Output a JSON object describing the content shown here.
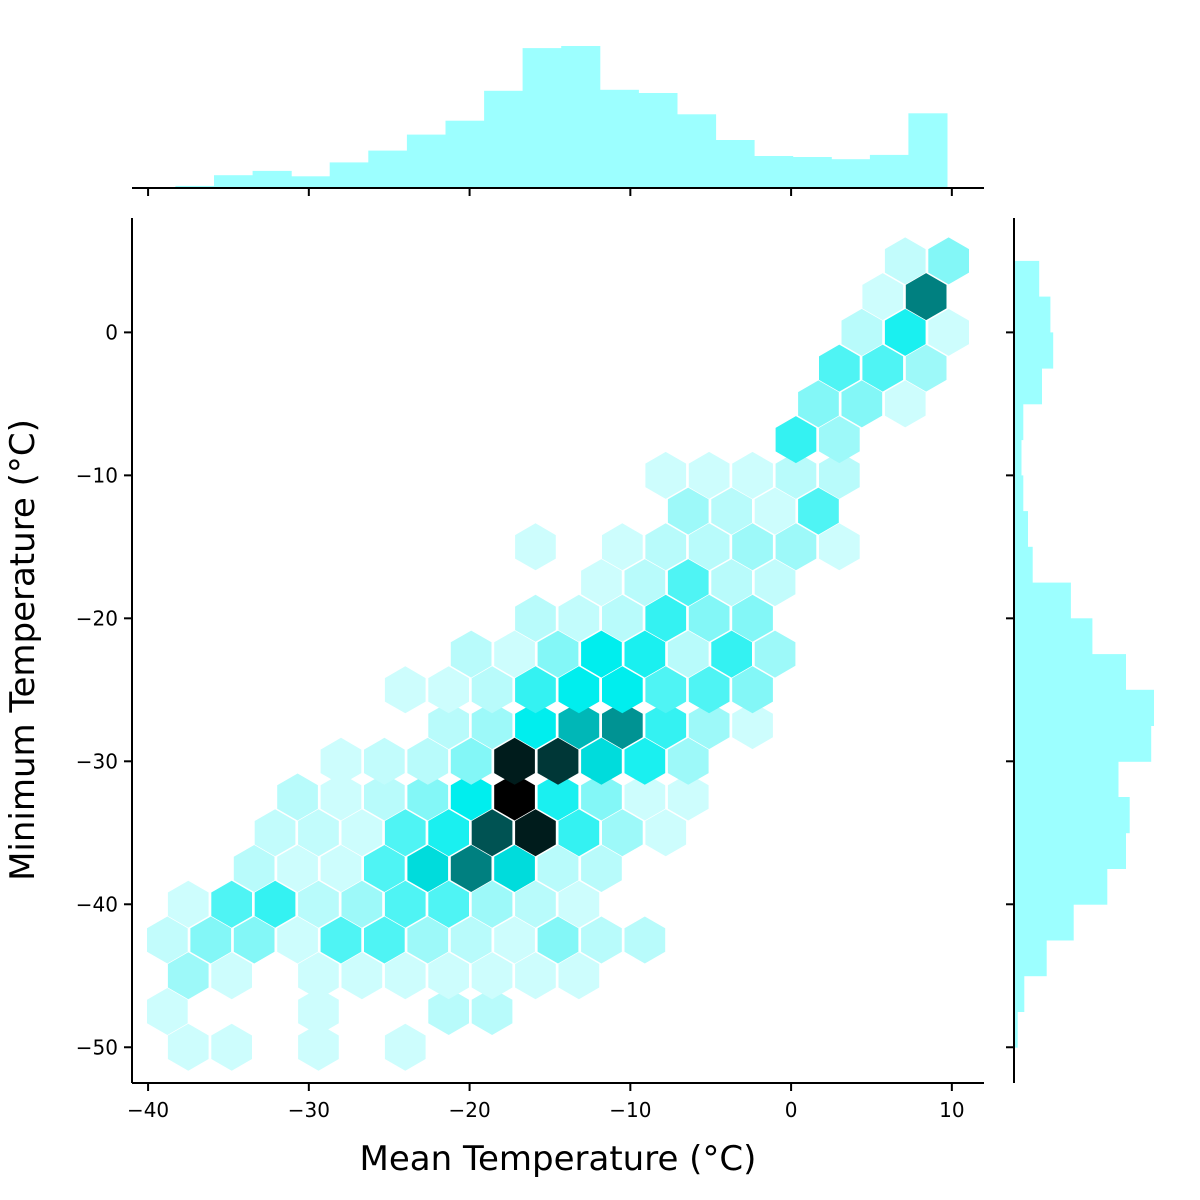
{
  "chart_data": {
    "type": "hexbin-jointplot",
    "xlabel": "Mean Temperature (°C)",
    "ylabel": "Minimum Temperature (°C)",
    "xlim": [
      -41,
      12
    ],
    "ylim": [
      -52.5,
      8
    ],
    "x_ticks": [
      -40,
      -30,
      -20,
      -10,
      0,
      10
    ],
    "y_ticks": [
      -50,
      -40,
      -30,
      -20,
      -10,
      0
    ],
    "x_tick_labels": [
      "−40",
      "−30",
      "−20",
      "−10",
      "0",
      "10"
    ],
    "y_tick_labels": [
      "−50",
      "−40",
      "−30",
      "−20",
      "−10",
      "0"
    ],
    "hex_color": "#00ffff",
    "max_count": 10,
    "hexbins": [
      {
        "x": -37.5,
        "y": -50,
        "count": 0.6
      },
      {
        "x": -34.8,
        "y": -50,
        "count": 0.6
      },
      {
        "x": -29.4,
        "y": -50,
        "count": 0.6
      },
      {
        "x": -24.0,
        "y": -50,
        "count": 0.6
      },
      {
        "x": -38.8,
        "y": -47.5,
        "count": 0.6
      },
      {
        "x": -29.4,
        "y": -47.5,
        "count": 0.6
      },
      {
        "x": -21.3,
        "y": -47.5,
        "count": 1.0
      },
      {
        "x": -18.6,
        "y": -47.5,
        "count": 1.0
      },
      {
        "x": -37.5,
        "y": -45,
        "count": 1.5
      },
      {
        "x": -34.8,
        "y": -45,
        "count": 0.6
      },
      {
        "x": -29.4,
        "y": -45,
        "count": 0.6
      },
      {
        "x": -26.7,
        "y": -45,
        "count": 0.6
      },
      {
        "x": -24.0,
        "y": -45,
        "count": 0.6
      },
      {
        "x": -21.3,
        "y": -45,
        "count": 0.6
      },
      {
        "x": -18.6,
        "y": -45,
        "count": 0.6
      },
      {
        "x": -15.9,
        "y": -45,
        "count": 0.6
      },
      {
        "x": -13.2,
        "y": -45,
        "count": 0.6
      },
      {
        "x": -38.8,
        "y": -42.5,
        "count": 0.8
      },
      {
        "x": -36.1,
        "y": -42.5,
        "count": 2.0
      },
      {
        "x": -33.4,
        "y": -42.5,
        "count": 2.0
      },
      {
        "x": -30.7,
        "y": -42.5,
        "count": 0.6
      },
      {
        "x": -28.0,
        "y": -42.5,
        "count": 3.0
      },
      {
        "x": -25.3,
        "y": -42.5,
        "count": 3.0
      },
      {
        "x": -22.6,
        "y": -42.5,
        "count": 1.5
      },
      {
        "x": -19.9,
        "y": -42.5,
        "count": 1.0
      },
      {
        "x": -17.2,
        "y": -42.5,
        "count": 0.6
      },
      {
        "x": -14.5,
        "y": -42.5,
        "count": 2.0
      },
      {
        "x": -11.8,
        "y": -42.5,
        "count": 1.0
      },
      {
        "x": -9.1,
        "y": -42.5,
        "count": 1.0
      },
      {
        "x": -37.5,
        "y": -40,
        "count": 0.6
      },
      {
        "x": -34.8,
        "y": -40,
        "count": 3.0
      },
      {
        "x": -32.1,
        "y": -40,
        "count": 3.5
      },
      {
        "x": -29.4,
        "y": -40,
        "count": 1.0
      },
      {
        "x": -26.7,
        "y": -40,
        "count": 1.5
      },
      {
        "x": -24.0,
        "y": -40,
        "count": 3.0
      },
      {
        "x": -21.3,
        "y": -40,
        "count": 3.0
      },
      {
        "x": -18.6,
        "y": -40,
        "count": 1.5
      },
      {
        "x": -15.9,
        "y": -40,
        "count": 1.0
      },
      {
        "x": -13.2,
        "y": -40,
        "count": 0.6
      },
      {
        "x": -33.4,
        "y": -37.5,
        "count": 1.0
      },
      {
        "x": -30.7,
        "y": -37.5,
        "count": 0.6
      },
      {
        "x": -28.0,
        "y": -37.5,
        "count": 0.6
      },
      {
        "x": -25.3,
        "y": -37.5,
        "count": 3.0
      },
      {
        "x": -22.6,
        "y": -37.5,
        "count": 5.0
      },
      {
        "x": -19.9,
        "y": -37.5,
        "count": 7.5
      },
      {
        "x": -17.2,
        "y": -37.5,
        "count": 5.0
      },
      {
        "x": -14.5,
        "y": -37.5,
        "count": 1.0
      },
      {
        "x": -11.8,
        "y": -37.5,
        "count": 1.0
      },
      {
        "x": -32.1,
        "y": -35,
        "count": 0.8
      },
      {
        "x": -29.4,
        "y": -35,
        "count": 0.8
      },
      {
        "x": -26.7,
        "y": -35,
        "count": 0.6
      },
      {
        "x": -24.0,
        "y": -35,
        "count": 3.0
      },
      {
        "x": -21.3,
        "y": -35,
        "count": 4.0
      },
      {
        "x": -18.6,
        "y": -35,
        "count": 8.5
      },
      {
        "x": -15.9,
        "y": -35,
        "count": 9.5
      },
      {
        "x": -13.2,
        "y": -35,
        "count": 3.5
      },
      {
        "x": -10.5,
        "y": -35,
        "count": 1.5
      },
      {
        "x": -7.8,
        "y": -35,
        "count": 0.6
      },
      {
        "x": -30.7,
        "y": -32.5,
        "count": 1.0
      },
      {
        "x": -28.0,
        "y": -32.5,
        "count": 0.6
      },
      {
        "x": -25.3,
        "y": -32.5,
        "count": 1.0
      },
      {
        "x": -22.6,
        "y": -32.5,
        "count": 2.0
      },
      {
        "x": -19.9,
        "y": -32.5,
        "count": 4.5
      },
      {
        "x": -17.2,
        "y": -32.5,
        "count": 10.0
      },
      {
        "x": -14.5,
        "y": -32.5,
        "count": 4.0
      },
      {
        "x": -11.8,
        "y": -32.5,
        "count": 2.0
      },
      {
        "x": -9.1,
        "y": -32.5,
        "count": 0.6
      },
      {
        "x": -6.4,
        "y": -32.5,
        "count": 0.6
      },
      {
        "x": -28.0,
        "y": -30,
        "count": 0.6
      },
      {
        "x": -25.3,
        "y": -30,
        "count": 0.8
      },
      {
        "x": -22.6,
        "y": -30,
        "count": 1.0
      },
      {
        "x": -19.9,
        "y": -30,
        "count": 2.0
      },
      {
        "x": -17.2,
        "y": -30,
        "count": 9.5
      },
      {
        "x": -14.5,
        "y": -30,
        "count": 9.0
      },
      {
        "x": -11.8,
        "y": -30,
        "count": 5.0
      },
      {
        "x": -9.1,
        "y": -30,
        "count": 4.0
      },
      {
        "x": -6.4,
        "y": -30,
        "count": 1.5
      },
      {
        "x": -21.3,
        "y": -27.5,
        "count": 1.0
      },
      {
        "x": -18.6,
        "y": -27.5,
        "count": 1.5
      },
      {
        "x": -15.9,
        "y": -27.5,
        "count": 4.5
      },
      {
        "x": -13.2,
        "y": -27.5,
        "count": 6.0
      },
      {
        "x": -10.5,
        "y": -27.5,
        "count": 7.0
      },
      {
        "x": -7.8,
        "y": -27.5,
        "count": 3.5
      },
      {
        "x": -5.1,
        "y": -27.5,
        "count": 1.5
      },
      {
        "x": -2.4,
        "y": -27.5,
        "count": 0.6
      },
      {
        "x": -24.0,
        "y": -25,
        "count": 0.6
      },
      {
        "x": -21.3,
        "y": -25,
        "count": 0.6
      },
      {
        "x": -18.6,
        "y": -25,
        "count": 1.0
      },
      {
        "x": -15.9,
        "y": -25,
        "count": 3.5
      },
      {
        "x": -13.2,
        "y": -25,
        "count": 4.5
      },
      {
        "x": -10.5,
        "y": -25,
        "count": 4.5
      },
      {
        "x": -7.8,
        "y": -25,
        "count": 3.0
      },
      {
        "x": -5.1,
        "y": -25,
        "count": 3.0
      },
      {
        "x": -2.4,
        "y": -25,
        "count": 2.0
      },
      {
        "x": -19.9,
        "y": -22.5,
        "count": 1.0
      },
      {
        "x": -17.2,
        "y": -22.5,
        "count": 0.6
      },
      {
        "x": -14.5,
        "y": -22.5,
        "count": 2.0
      },
      {
        "x": -11.8,
        "y": -22.5,
        "count": 4.5
      },
      {
        "x": -9.1,
        "y": -22.5,
        "count": 4.0
      },
      {
        "x": -6.4,
        "y": -22.5,
        "count": 1.0
      },
      {
        "x": -3.7,
        "y": -22.5,
        "count": 3.5
      },
      {
        "x": -1.0,
        "y": -22.5,
        "count": 1.5
      },
      {
        "x": -15.9,
        "y": -20,
        "count": 1.0
      },
      {
        "x": -13.2,
        "y": -20,
        "count": 0.8
      },
      {
        "x": -10.5,
        "y": -20,
        "count": 1.0
      },
      {
        "x": -7.8,
        "y": -20,
        "count": 3.5
      },
      {
        "x": -5.1,
        "y": -20,
        "count": 2.0
      },
      {
        "x": -2.4,
        "y": -20,
        "count": 2.0
      },
      {
        "x": -11.8,
        "y": -17.5,
        "count": 0.6
      },
      {
        "x": -9.1,
        "y": -17.5,
        "count": 1.0
      },
      {
        "x": -6.4,
        "y": -17.5,
        "count": 3.0
      },
      {
        "x": -3.7,
        "y": -17.5,
        "count": 1.0
      },
      {
        "x": -1.0,
        "y": -17.5,
        "count": 0.8
      },
      {
        "x": -15.9,
        "y": -15,
        "count": 0.6
      },
      {
        "x": -10.5,
        "y": -15,
        "count": 0.6
      },
      {
        "x": -7.8,
        "y": -15,
        "count": 1.0
      },
      {
        "x": -5.1,
        "y": -15,
        "count": 1.0
      },
      {
        "x": -2.4,
        "y": -15,
        "count": 1.5
      },
      {
        "x": 0.3,
        "y": -15,
        "count": 1.5
      },
      {
        "x": 3.0,
        "y": -15,
        "count": 0.6
      },
      {
        "x": -6.4,
        "y": -12.5,
        "count": 1.5
      },
      {
        "x": -3.7,
        "y": -12.5,
        "count": 1.0
      },
      {
        "x": -1.0,
        "y": -12.5,
        "count": 0.6
      },
      {
        "x": 1.7,
        "y": -12.5,
        "count": 3.0
      },
      {
        "x": -7.8,
        "y": -10,
        "count": 0.6
      },
      {
        "x": -5.1,
        "y": -10,
        "count": 0.6
      },
      {
        "x": -2.4,
        "y": -10,
        "count": 0.6
      },
      {
        "x": 0.3,
        "y": -10,
        "count": 1.0
      },
      {
        "x": 3.0,
        "y": -10,
        "count": 1.0
      },
      {
        "x": 0.3,
        "y": -7.5,
        "count": 3.5
      },
      {
        "x": 3.0,
        "y": -7.5,
        "count": 1.5
      },
      {
        "x": 1.7,
        "y": -5,
        "count": 2.0
      },
      {
        "x": 4.4,
        "y": -5,
        "count": 2.0
      },
      {
        "x": 7.1,
        "y": -5,
        "count": 0.6
      },
      {
        "x": 3.0,
        "y": -2.5,
        "count": 3.0
      },
      {
        "x": 5.7,
        "y": -2.5,
        "count": 3.0
      },
      {
        "x": 8.4,
        "y": -2.5,
        "count": 1.5
      },
      {
        "x": 4.4,
        "y": 0,
        "count": 1.0
      },
      {
        "x": 7.1,
        "y": 0,
        "count": 4.0
      },
      {
        "x": 9.8,
        "y": 0,
        "count": 0.6
      },
      {
        "x": 5.7,
        "y": 2.5,
        "count": 0.6
      },
      {
        "x": 8.4,
        "y": 2.5,
        "count": 7.5
      },
      {
        "x": 7.1,
        "y": 5,
        "count": 0.8
      },
      {
        "x": 9.8,
        "y": 5,
        "count": 2.0
      }
    ],
    "x_hist": {
      "bin_edges": [
        -40.7,
        -38.3,
        -35.9,
        -33.5,
        -31.1,
        -28.7,
        -26.3,
        -23.9,
        -21.5,
        -19.1,
        -16.7,
        -14.3,
        -11.9,
        -9.5,
        -7.1,
        -4.7,
        -2.3,
        0.1,
        2.5,
        4.9,
        7.3,
        9.7
      ],
      "counts": [
        0,
        2,
        12,
        16,
        11,
        24,
        35,
        50,
        63,
        91,
        131,
        133,
        92,
        89,
        69,
        45,
        30,
        29,
        27,
        31,
        70
      ]
    },
    "y_hist": {
      "bin_edges": [
        -52.5,
        -50,
        -47.5,
        -45,
        -42.5,
        -40,
        -37.5,
        -35,
        -32.5,
        -30,
        -27.5,
        -25,
        -22.5,
        -20,
        -17.5,
        -15,
        -12.5,
        -10,
        -7.5,
        -5,
        -2.5,
        0,
        2.5,
        5
      ],
      "counts": [
        0,
        4,
        11,
        35,
        64,
        100,
        120,
        124,
        112,
        147,
        150,
        120,
        84,
        61,
        20,
        15,
        10,
        8,
        10,
        30,
        42,
        39,
        27
      ]
    }
  }
}
